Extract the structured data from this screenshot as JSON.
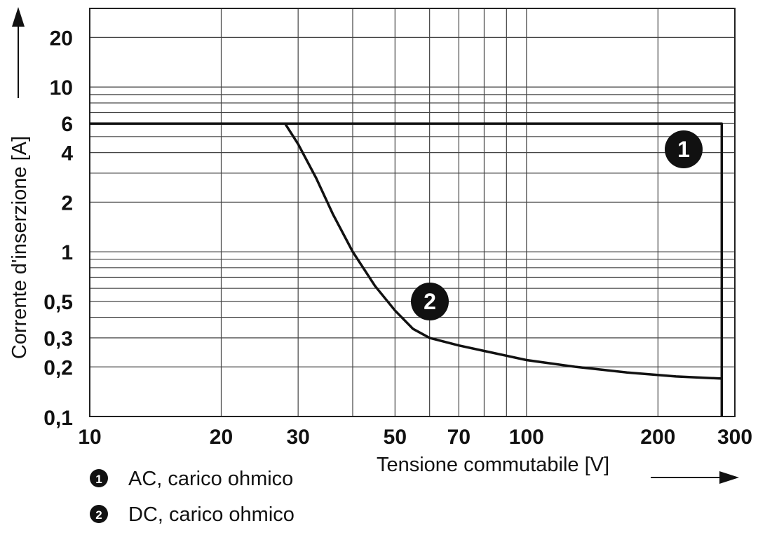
{
  "chart_data": {
    "type": "line",
    "x_scale": "log",
    "y_scale": "log",
    "xlim": [
      10,
      300
    ],
    "ylim": [
      0.1,
      30
    ],
    "xlabel": "Tensione commutabile [V]",
    "ylabel": "Corrente d'inserzione [A]",
    "x_ticks": [
      {
        "value": 10,
        "label": "10"
      },
      {
        "value": 20,
        "label": "20"
      },
      {
        "value": 30,
        "label": "30"
      },
      {
        "value": 50,
        "label": "50"
      },
      {
        "value": 70,
        "label": "70"
      },
      {
        "value": 100,
        "label": "100"
      },
      {
        "value": 200,
        "label": "200"
      },
      {
        "value": 300,
        "label": "300"
      }
    ],
    "y_ticks": [
      {
        "value": 0.1,
        "label": "0,1"
      },
      {
        "value": 0.2,
        "label": "0,2"
      },
      {
        "value": 0.3,
        "label": "0,3"
      },
      {
        "value": 0.5,
        "label": "0,5"
      },
      {
        "value": 1,
        "label": "1"
      },
      {
        "value": 2,
        "label": "2"
      },
      {
        "value": 4,
        "label": "4"
      },
      {
        "value": 6,
        "label": "6"
      },
      {
        "value": 10,
        "label": "10"
      },
      {
        "value": 20,
        "label": "20"
      }
    ],
    "x_gridlines": [
      10,
      20,
      30,
      40,
      50,
      60,
      70,
      80,
      90,
      100,
      200,
      300
    ],
    "y_gridlines": [
      0.1,
      0.2,
      0.3,
      0.4,
      0.5,
      0.6,
      0.7,
      0.8,
      0.9,
      1,
      2,
      3,
      4,
      5,
      6,
      7,
      8,
      9,
      10,
      20,
      30
    ],
    "grid": true,
    "legend_position": "bottom-left",
    "series": [
      {
        "badge": "1",
        "name": "AC, carico ohmico",
        "color": "#111111",
        "x": [
          10,
          280,
          280
        ],
        "y": [
          6,
          6,
          0.1
        ]
      },
      {
        "badge": "2",
        "name": "DC, carico ohmico",
        "color": "#111111",
        "x": [
          28,
          30,
          33,
          36,
          40,
          45,
          50,
          55,
          60,
          70,
          80,
          100,
          130,
          170,
          220,
          280
        ],
        "y": [
          6,
          4.5,
          2.8,
          1.7,
          1.0,
          0.62,
          0.44,
          0.34,
          0.3,
          0.27,
          0.25,
          0.22,
          0.2,
          0.185,
          0.175,
          0.17
        ]
      }
    ]
  }
}
